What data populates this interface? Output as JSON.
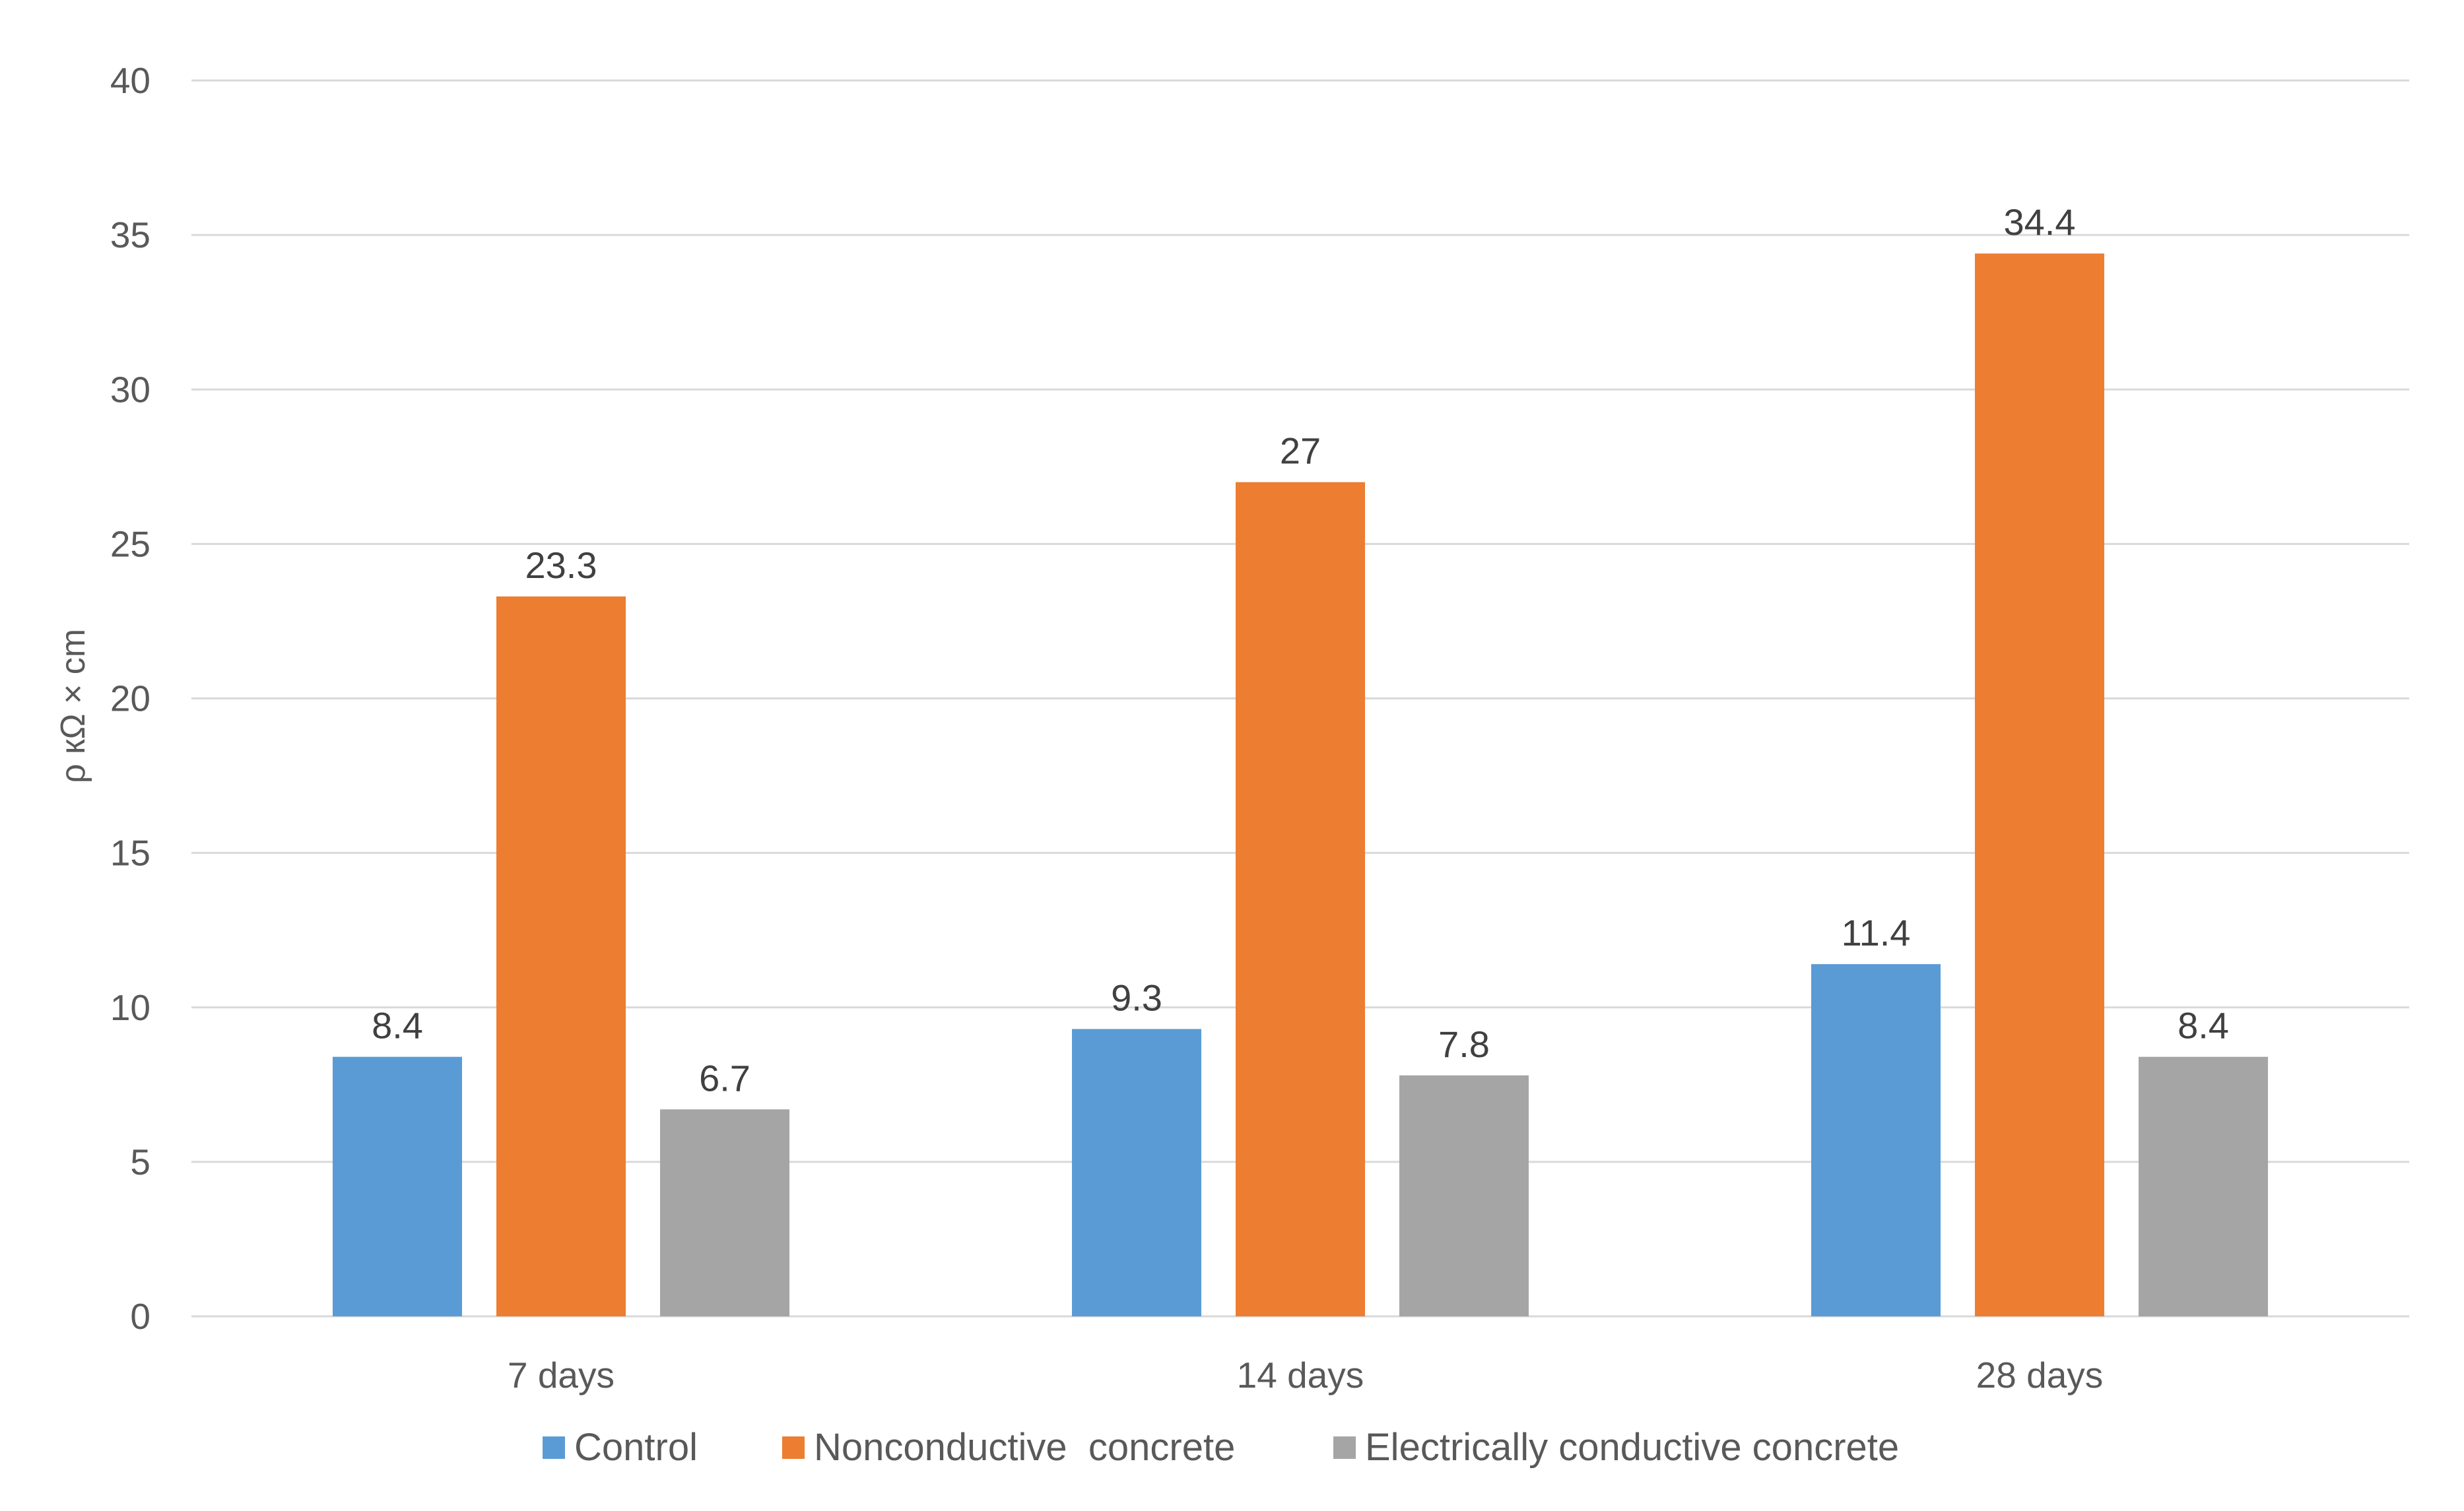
{
  "chart_data": {
    "type": "bar",
    "title": "",
    "xlabel": "",
    "ylabel": "ρ кΩ × cm",
    "ylim": [
      0,
      40
    ],
    "yticks": [
      0,
      5,
      10,
      15,
      20,
      25,
      30,
      35,
      40
    ],
    "grid": true,
    "legend_position": "bottom",
    "categories": [
      "7 days",
      "14 days",
      "28 days"
    ],
    "series": [
      {
        "name": "Control",
        "color": "#5B9BD5",
        "values": [
          8.4,
          9.3,
          11.4
        ],
        "labels": [
          "8.4",
          "9.3",
          "11.4"
        ]
      },
      {
        "name": "Nonconductive  concrete",
        "color": "#ED7D31",
        "values": [
          23.3,
          27,
          34.4
        ],
        "labels": [
          "23.3",
          "27",
          "34.4"
        ]
      },
      {
        "name": "Electrically conductive concrete",
        "color": "#A5A5A5",
        "values": [
          6.7,
          7.8,
          8.4
        ],
        "labels": [
          "6.7",
          "7.8",
          "8.4"
        ]
      }
    ]
  }
}
